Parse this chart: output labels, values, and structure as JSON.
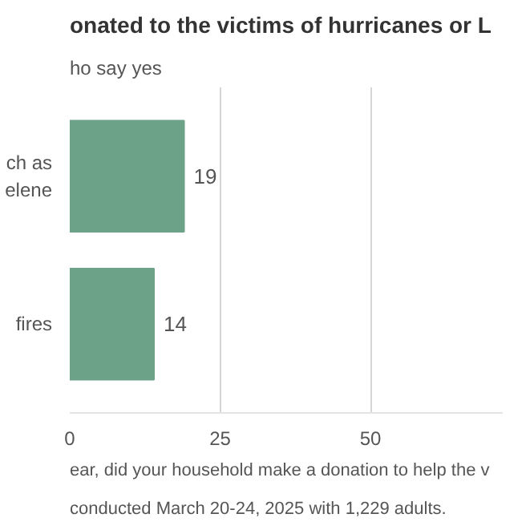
{
  "chart_data": {
    "type": "bar",
    "orientation": "horizontal",
    "title": "onated to the victims of hurricanes or L",
    "subtitle": "ho say yes",
    "categories": [
      "ch as\nelene",
      "fires"
    ],
    "series": [
      {
        "color": "#6ca287",
        "values": [
          19,
          14
        ]
      }
    ],
    "xlim": [
      0,
      72
    ],
    "xticks": [
      0,
      25,
      50
    ],
    "grid": "x",
    "data_labels": true,
    "annotations": [
      "ear, did your household make a donation to help the v",
      "conducted March 20-24, 2025 with 1,229 adults."
    ]
  }
}
